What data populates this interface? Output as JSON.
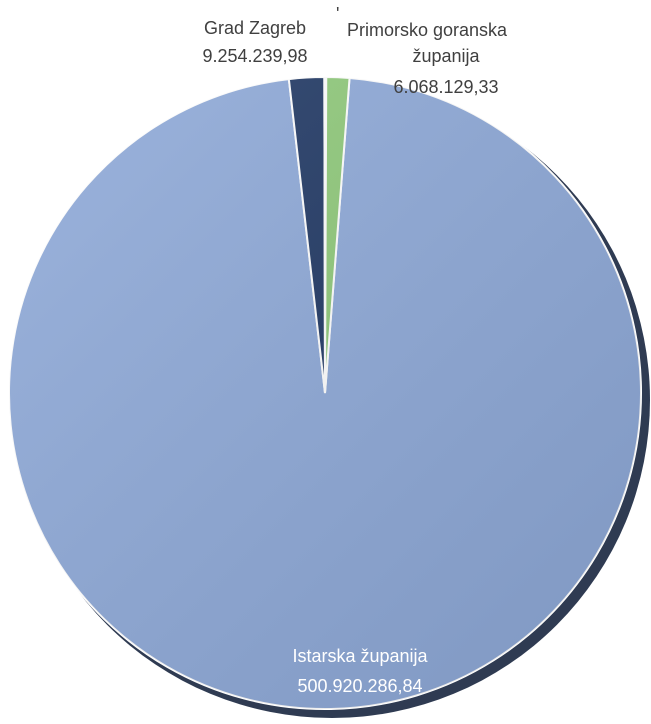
{
  "chart_data": {
    "type": "pie",
    "style": "3d-shaded",
    "legend": "none",
    "slices": [
      {
        "label": "Istarska županija",
        "value": 500920286.84,
        "value_text": "500.920.286,84",
        "color": "#8ea9d8"
      },
      {
        "label": "Grad Zagreb",
        "value": 9254239.98,
        "value_text": "9.254.239,98",
        "color": "#203864"
      },
      {
        "label": "",
        "value": 500000,
        "value_text": "",
        "color": "#ffc000"
      },
      {
        "label": "Primorsko goranska županija",
        "value": 6068129.33,
        "value_text": "6.068.129,33",
        "color": "#8fc97a"
      }
    ],
    "label_lines": {
      "istarska": [
        "Istarska županija",
        "500.920.286,84"
      ],
      "zagreb": [
        "Grad Zagreb",
        "9.254.239,98"
      ],
      "primorsko": [
        "Primorsko goranska",
        "županija",
        "6.068.129,33"
      ],
      "small_mark": "'"
    }
  }
}
